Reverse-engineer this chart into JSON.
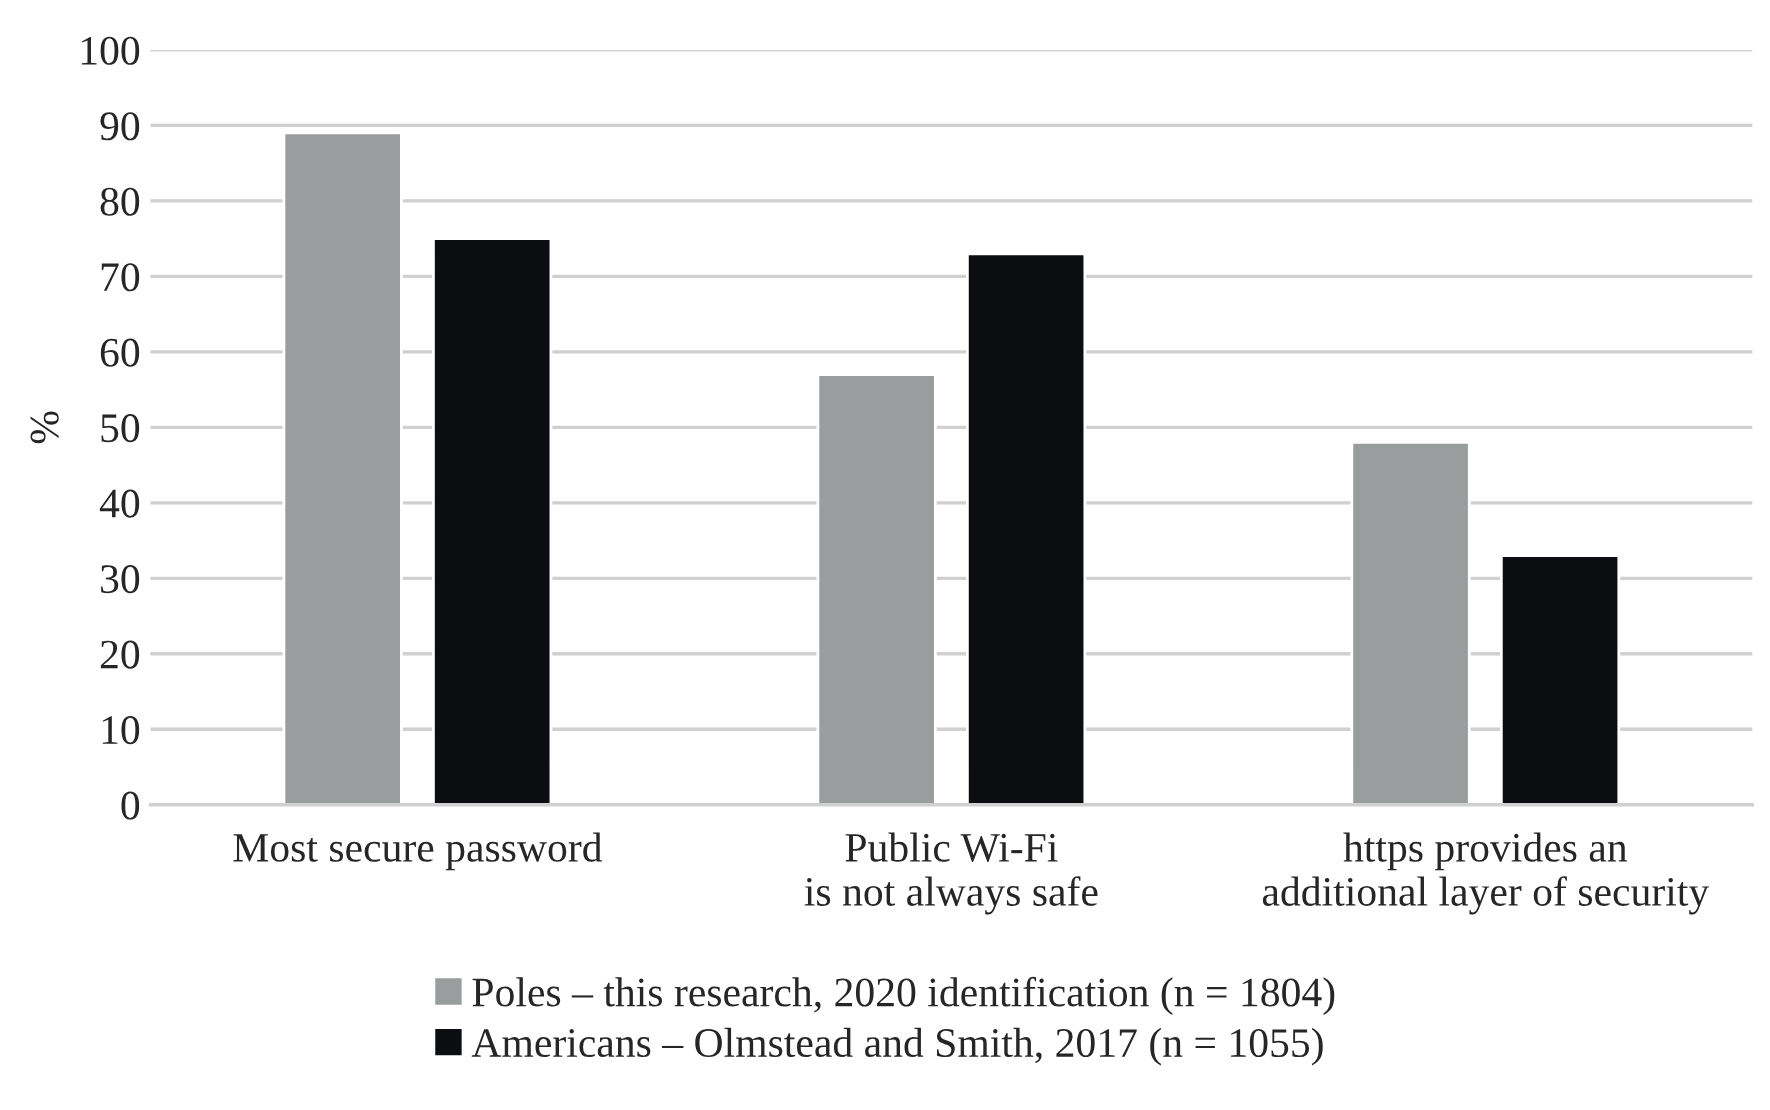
{
  "chart_data": {
    "type": "bar",
    "ylabel": "%",
    "categories": [
      "Most secure password",
      "Public Wi-Fi\nis not always safe",
      "https provides an\nadditional layer of security"
    ],
    "series": [
      {
        "name": "Poles – this research, 2020 identification (n = 1804)",
        "color": "#9a9d9d",
        "values": [
          89,
          57,
          48
        ]
      },
      {
        "name": "Americans – Olmstead and Smith, 2017 (n = 1055)",
        "color": "#0c0d10",
        "values": [
          75,
          73,
          33
        ]
      }
    ],
    "ylim": [
      0,
      100
    ],
    "yticks": [
      0,
      10,
      20,
      30,
      40,
      50,
      60,
      70,
      80,
      90,
      100
    ],
    "grid": "y",
    "legend": "bottom"
  }
}
